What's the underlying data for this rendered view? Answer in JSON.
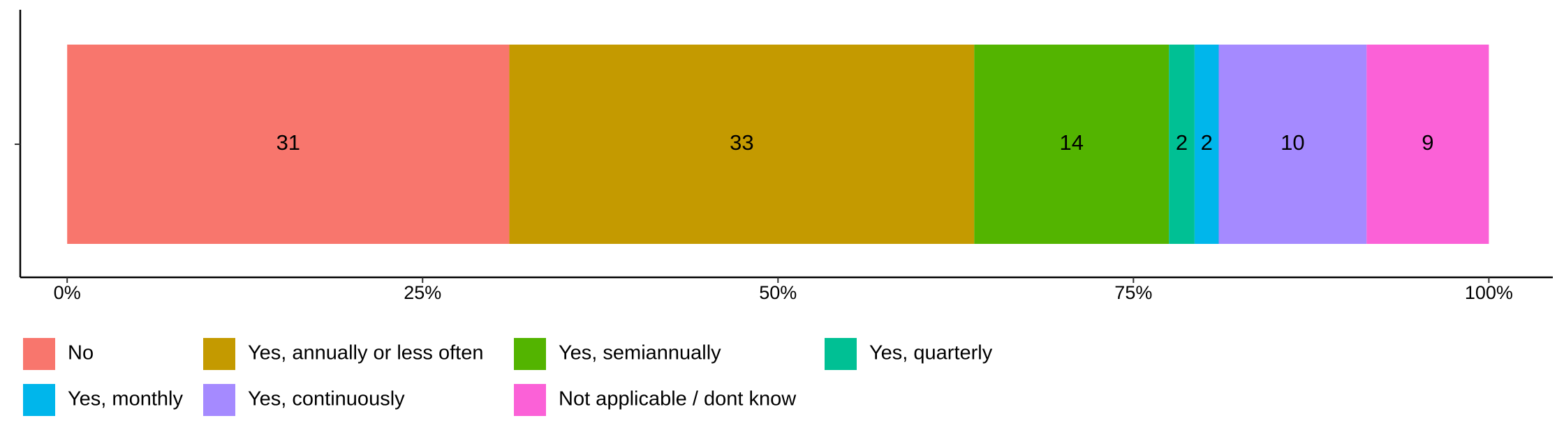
{
  "chart_data": {
    "type": "stacked-bar-horizontal",
    "categories": [
      null
    ],
    "series": [
      {
        "name": "No",
        "color": "#f8766d",
        "values": [
          31.1
        ],
        "value_labels": [
          "31"
        ]
      },
      {
        "name": "Yes, annually or less often",
        "color": "#c49a00",
        "values": [
          32.7
        ],
        "value_labels": [
          "33"
        ]
      },
      {
        "name": "Yes, semiannually",
        "color": "#53b400",
        "values": [
          13.7
        ],
        "value_labels": [
          "14"
        ]
      },
      {
        "name": "Yes, quarterly",
        "color": "#00c094",
        "values": [
          1.8
        ],
        "value_labels": [
          "2"
        ]
      },
      {
        "name": "Yes, monthly",
        "color": "#00b6eb",
        "values": [
          1.7
        ],
        "value_labels": [
          "2"
        ]
      },
      {
        "name": "Yes, continuously",
        "color": "#a58aff",
        "values": [
          10.4
        ],
        "value_labels": [
          "10"
        ]
      },
      {
        "name": "Not applicable / dont know",
        "color": "#fb61d7",
        "values": [
          8.6
        ],
        "value_labels": [
          "9"
        ]
      }
    ],
    "xlim": [
      -3.3,
      104.5
    ],
    "xticks": [
      {
        "value": 0,
        "label": "0%"
      },
      {
        "value": 25,
        "label": "25%"
      },
      {
        "value": 50,
        "label": "50%"
      },
      {
        "value": 75,
        "label": "75%"
      },
      {
        "value": 100,
        "label": "100%"
      }
    ],
    "legend": "bottom"
  }
}
